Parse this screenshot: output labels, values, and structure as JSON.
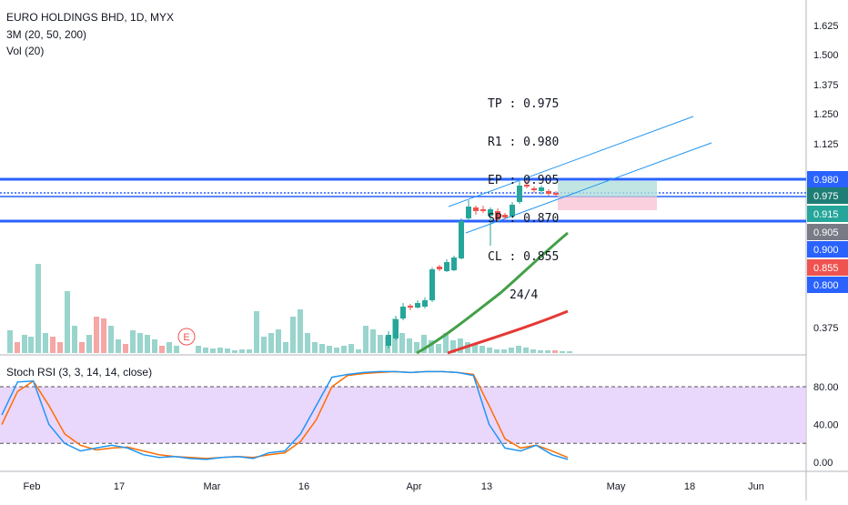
{
  "header": {
    "title": "EURO HOLDINGS BHD, 1D, MYX",
    "ma_label": "3M (20, 50, 200)",
    "vol_label": "Vol (20)",
    "stoch_label": "Stoch RSI (3, 3, 14, 14, close)"
  },
  "annotation": {
    "lines": [
      "TP : 0.975",
      "R1 : 0.980",
      "EP : 0.905",
      "SP : 0.870",
      "CL : 0.855"
    ],
    "date": "24/4"
  },
  "earnings_marker": "E",
  "price_badges": [
    {
      "label": "0.980",
      "value": 0.98,
      "bg": "#2962ff",
      "fg": "#ffffff"
    },
    {
      "label": "0.975",
      "value": 0.975,
      "bg": "#1e7d74",
      "fg": "#ffffff"
    },
    {
      "label": "0.915",
      "value": 0.915,
      "bg": "#26a69a",
      "fg": "#ffffff"
    },
    {
      "label": "0.905",
      "value": 0.905,
      "bg": "#787b86",
      "fg": "#ffffff"
    },
    {
      "label": "0.900",
      "value": 0.9,
      "bg": "#2962ff",
      "fg": "#ffffff"
    },
    {
      "label": "0.855",
      "value": 0.855,
      "bg": "#ef5350",
      "fg": "#ffffff"
    },
    {
      "label": "0.800",
      "value": 0.8,
      "bg": "#2962ff",
      "fg": "#ffffff"
    }
  ],
  "colors": {
    "up": "#26a69a",
    "down": "#ef5350",
    "vol_up": "#99d4cd",
    "vol_down": "#f5a6a5",
    "ma_fast": "#43a047",
    "ma_slow": "#e53935",
    "hline": "#2962ff",
    "channel": "#2196f3",
    "stoch_k": "#2196f3",
    "stoch_d": "#ff6d00",
    "stoch_band": "#e1c6fb"
  },
  "chart_data": {
    "type": "candlestick",
    "x_ticks": [
      "Feb",
      "17",
      "Mar",
      "16",
      "Apr",
      "13",
      "May",
      "18",
      "Jun"
    ],
    "y_ticks": [
      "1.625",
      "1.500",
      "1.375",
      "1.250",
      "1.125",
      "0.375"
    ],
    "price_axis_ticks_visible": [
      1.625,
      1.5,
      1.375,
      1.25,
      1.125,
      0.375
    ],
    "candles": [
      {
        "o": 0.42,
        "h": 0.445,
        "l": 0.415,
        "c": 0.44
      },
      {
        "o": 0.44,
        "h": 0.47,
        "l": 0.435,
        "c": 0.465
      },
      {
        "o": 0.46,
        "h": 0.47,
        "l": 0.45,
        "c": 0.455
      },
      {
        "o": 0.455,
        "h": 0.465,
        "l": 0.45,
        "c": 0.46
      },
      {
        "o": 0.46,
        "h": 0.5,
        "l": 0.455,
        "c": 0.495
      },
      {
        "o": 0.5,
        "h": 0.56,
        "l": 0.495,
        "c": 0.555
      },
      {
        "o": 0.555,
        "h": 0.6,
        "l": 0.55,
        "c": 0.59
      },
      {
        "o": 0.59,
        "h": 0.61,
        "l": 0.58,
        "c": 0.6
      },
      {
        "o": 0.6,
        "h": 0.62,
        "l": 0.585,
        "c": 0.61
      },
      {
        "o": 0.62,
        "h": 0.75,
        "l": 0.61,
        "c": 0.74
      },
      {
        "o": 0.74,
        "h": 0.92,
        "l": 0.73,
        "c": 0.905
      },
      {
        "o": 0.905,
        "h": 0.93,
        "l": 0.89,
        "c": 0.92
      },
      {
        "o": 0.92,
        "h": 0.925,
        "l": 0.9,
        "c": 0.915
      },
      {
        "o": 0.915,
        "h": 0.92,
        "l": 0.86,
        "c": 0.905
      },
      {
        "o": 0.905,
        "h": 0.915,
        "l": 0.895,
        "c": 0.9
      },
      {
        "o": 0.9,
        "h": 0.91,
        "l": 0.885,
        "c": 0.895
      },
      {
        "o": 0.895,
        "h": 0.92,
        "l": 0.89,
        "c": 0.915
      },
      {
        "o": 0.915,
        "h": 0.99,
        "l": 0.91,
        "c": 0.975
      },
      {
        "o": 0.975,
        "h": 0.985,
        "l": 0.965,
        "c": 0.97
      },
      {
        "o": 0.97,
        "h": 0.975,
        "l": 0.96,
        "c": 0.965
      },
      {
        "o": 0.965,
        "h": 0.97,
        "l": 0.955,
        "c": 0.962
      },
      {
        "o": 0.962,
        "h": 0.965,
        "l": 0.955,
        "c": 0.96
      }
    ],
    "stoch_k": [
      50,
      85,
      86,
      40,
      20,
      12,
      15,
      18,
      15,
      8,
      5,
      6,
      4,
      3,
      5,
      6,
      4,
      10,
      12,
      30,
      60,
      90,
      93,
      95,
      96,
      96,
      95,
      96,
      96,
      95,
      92,
      40,
      15,
      12,
      18,
      8,
      3
    ],
    "stoch_d": [
      40,
      75,
      86,
      60,
      30,
      18,
      13,
      15,
      16,
      12,
      8,
      6,
      5,
      4,
      5,
      6,
      5,
      8,
      10,
      22,
      45,
      80,
      92,
      94,
      95,
      96,
      95,
      96,
      96,
      95,
      93,
      60,
      25,
      15,
      18,
      12,
      5
    ],
    "stoch_levels": [
      80,
      20
    ],
    "stoch_ticks": [
      "80.00",
      "40.00",
      "0.00"
    ]
  }
}
